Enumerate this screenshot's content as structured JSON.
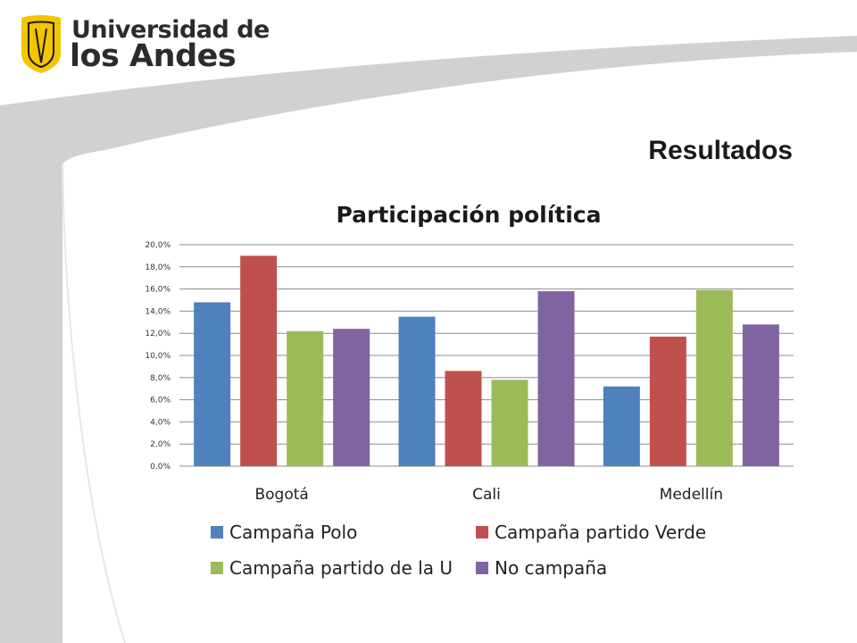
{
  "logo": {
    "line1": "Universidad de",
    "line2": "los Andes"
  },
  "slide": {
    "title": "Resultados"
  },
  "colors": {
    "polo": "#4F81BD",
    "verde": "#C0504D",
    "u": "#9BBB59",
    "none": "#8064A2",
    "grid": "#8c8c8c"
  },
  "chart_data": {
    "type": "bar",
    "title": "Participación política",
    "xlabel": "",
    "ylabel": "",
    "ylim": [
      0,
      20
    ],
    "yticks": [
      "0,0%",
      "2,0%",
      "4,0%",
      "6,0%",
      "8,0%",
      "10,0%",
      "12,0%",
      "14,0%",
      "16,0%",
      "18,0%",
      "20,0%"
    ],
    "grid": true,
    "legend": "bottom",
    "categories": [
      "Bogotá",
      "Cali",
      "Medellín"
    ],
    "series": [
      {
        "name": "Campaña Polo",
        "color": "#4F81BD",
        "values": [
          14.8,
          13.5,
          7.2
        ]
      },
      {
        "name": "Campaña partido Verde",
        "color": "#C0504D",
        "values": [
          19.0,
          8.6,
          11.7
        ]
      },
      {
        "name": "Campaña partido de la U",
        "color": "#9BBB59",
        "values": [
          12.2,
          7.8,
          15.9
        ]
      },
      {
        "name": "No campaña",
        "color": "#8064A2",
        "values": [
          12.4,
          15.8,
          12.8
        ]
      }
    ]
  }
}
